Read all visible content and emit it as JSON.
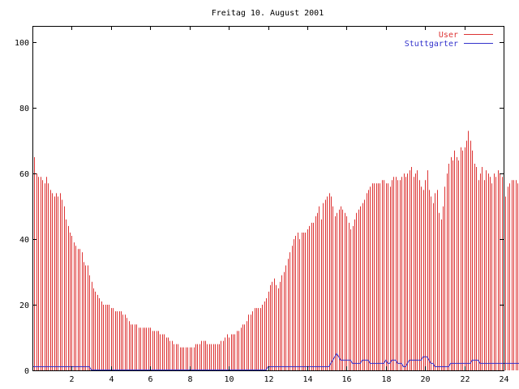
{
  "chart_data": {
    "type": "bar",
    "title": "Freitag 10. August 2001",
    "xlabel": "",
    "ylabel": "",
    "xlim": [
      0,
      24
    ],
    "ylim": [
      0,
      105
    ],
    "xticks": [
      "2",
      "4",
      "6",
      "8",
      "10",
      "12",
      "14",
      "16",
      "18",
      "20",
      "22",
      "24"
    ],
    "yticks": [
      "0",
      "20",
      "40",
      "60",
      "80",
      "100"
    ],
    "grid": false,
    "legend_position": "top-right",
    "x_step_hours": 0.1,
    "series": [
      {
        "name": "User",
        "color": "#dd3333",
        "style": "impulses",
        "values": [
          69,
          65,
          60,
          59,
          59,
          58,
          57,
          59,
          57,
          55,
          54,
          53,
          54,
          53,
          54,
          52,
          50,
          46,
          44,
          42,
          41,
          39,
          38,
          37,
          37,
          36,
          33,
          32,
          32,
          29,
          27,
          25,
          24,
          23,
          22,
          21,
          20,
          20,
          20,
          20,
          19,
          19,
          18,
          18,
          18,
          18,
          17,
          17,
          16,
          15,
          14,
          14,
          14,
          14,
          13,
          13,
          13,
          13,
          13,
          13,
          13,
          12,
          12,
          12,
          12,
          11,
          11,
          11,
          10,
          10,
          9,
          9,
          8,
          8,
          8,
          7,
          7,
          7,
          7,
          7,
          7,
          7,
          7,
          8,
          8,
          8,
          9,
          9,
          9,
          8,
          8,
          8,
          8,
          8,
          8,
          8,
          9,
          9,
          10,
          11,
          10,
          11,
          11,
          11,
          12,
          12,
          13,
          14,
          14,
          15,
          17,
          17,
          18,
          19,
          19,
          19,
          19,
          20,
          21,
          22,
          24,
          26,
          27,
          28,
          26,
          25,
          27,
          29,
          30,
          32,
          34,
          36,
          38,
          40,
          41,
          42,
          40,
          42,
          42,
          42,
          43,
          44,
          45,
          45,
          47,
          48,
          50,
          46,
          51,
          52,
          53,
          54,
          53,
          50,
          47,
          48,
          49,
          50,
          49,
          48,
          47,
          45,
          43,
          44,
          46,
          48,
          49,
          50,
          51,
          52,
          54,
          55,
          56,
          57,
          57,
          57,
          57,
          57,
          58,
          58,
          57,
          57,
          56,
          58,
          59,
          59,
          58,
          58,
          59,
          60,
          59,
          60,
          61,
          62,
          59,
          60,
          61,
          58,
          56,
          55,
          58,
          61,
          55,
          53,
          51,
          54,
          55,
          48,
          46,
          50,
          56,
          60,
          63,
          65,
          64,
          67,
          65,
          64,
          68,
          67,
          68,
          70,
          73,
          70,
          67,
          63,
          62,
          58,
          60,
          62,
          58,
          61,
          60,
          59,
          57,
          60,
          59,
          61,
          60,
          59,
          55,
          53,
          56,
          57,
          58,
          58,
          58,
          57,
          59,
          60,
          59,
          60,
          58,
          59,
          61,
          60,
          61,
          62,
          63,
          60,
          58,
          57,
          58,
          59,
          51,
          53,
          55,
          58,
          60,
          59,
          61,
          60,
          59,
          60,
          61,
          58,
          57,
          58,
          58,
          57,
          56,
          55,
          54,
          53,
          54,
          55,
          56,
          52,
          56,
          56,
          55,
          55,
          56,
          55,
          55,
          55
        ]
      },
      {
        "name": "Stuttgarter",
        "color": "#3333cc",
        "style": "lines",
        "values": [
          1,
          1,
          1,
          1,
          1,
          1,
          1,
          1,
          1,
          1,
          1,
          1,
          1,
          1,
          1,
          1,
          1,
          1,
          1,
          1,
          1,
          1,
          1,
          1,
          1,
          1,
          1,
          1,
          1,
          1,
          0,
          0,
          0,
          0,
          0,
          0,
          0,
          0,
          0,
          0,
          0,
          0,
          0,
          0,
          0,
          0,
          0,
          0,
          0,
          0,
          0,
          0,
          0,
          0,
          0,
          0,
          0,
          0,
          0,
          0,
          0,
          0,
          0,
          0,
          0,
          0,
          0,
          0,
          0,
          0,
          0,
          0,
          0,
          0,
          0,
          0,
          0,
          0,
          0,
          0,
          0,
          0,
          0,
          0,
          0,
          0,
          0,
          0,
          0,
          0,
          0,
          0,
          0,
          0,
          0,
          0,
          0,
          0,
          0,
          0,
          0,
          0,
          0,
          0,
          0,
          0,
          0,
          0,
          0,
          0,
          0,
          0,
          0,
          0,
          0,
          0,
          0,
          0,
          0,
          0,
          1,
          1,
          1,
          1,
          1,
          1,
          1,
          1,
          1,
          1,
          1,
          1,
          1,
          1,
          1,
          1,
          1,
          1,
          1,
          1,
          1,
          1,
          1,
          1,
          1,
          1,
          1,
          1,
          1,
          1,
          1,
          1,
          2,
          3,
          4,
          5,
          4,
          3,
          3,
          3,
          3,
          3,
          3,
          2,
          2,
          2,
          2,
          2,
          3,
          3,
          3,
          3,
          2,
          2,
          2,
          2,
          2,
          2,
          2,
          2,
          3,
          2,
          2,
          3,
          3,
          3,
          2,
          2,
          2,
          1,
          1,
          2,
          3,
          3,
          3,
          3,
          3,
          3,
          3,
          4,
          4,
          4,
          3,
          2,
          2,
          1,
          1,
          1,
          1,
          1,
          1,
          1,
          1,
          2,
          2,
          2,
          2,
          2,
          2,
          2,
          2,
          2,
          2,
          2,
          3,
          3,
          3,
          3,
          2,
          2,
          2,
          2,
          2,
          2,
          2,
          2,
          2,
          2,
          2,
          2,
          2,
          2,
          2,
          2,
          2,
          2,
          2,
          2,
          2,
          2,
          2,
          2,
          2,
          2,
          3,
          3,
          3,
          3,
          3,
          3,
          3,
          3,
          2,
          2,
          2,
          2,
          2,
          2,
          2,
          3,
          3,
          3,
          3,
          3,
          3,
          0,
          0,
          0,
          0,
          0,
          0,
          0,
          0,
          0,
          0,
          0,
          0,
          0,
          0,
          0,
          0,
          0,
          0,
          0,
          0,
          0
        ]
      }
    ]
  }
}
